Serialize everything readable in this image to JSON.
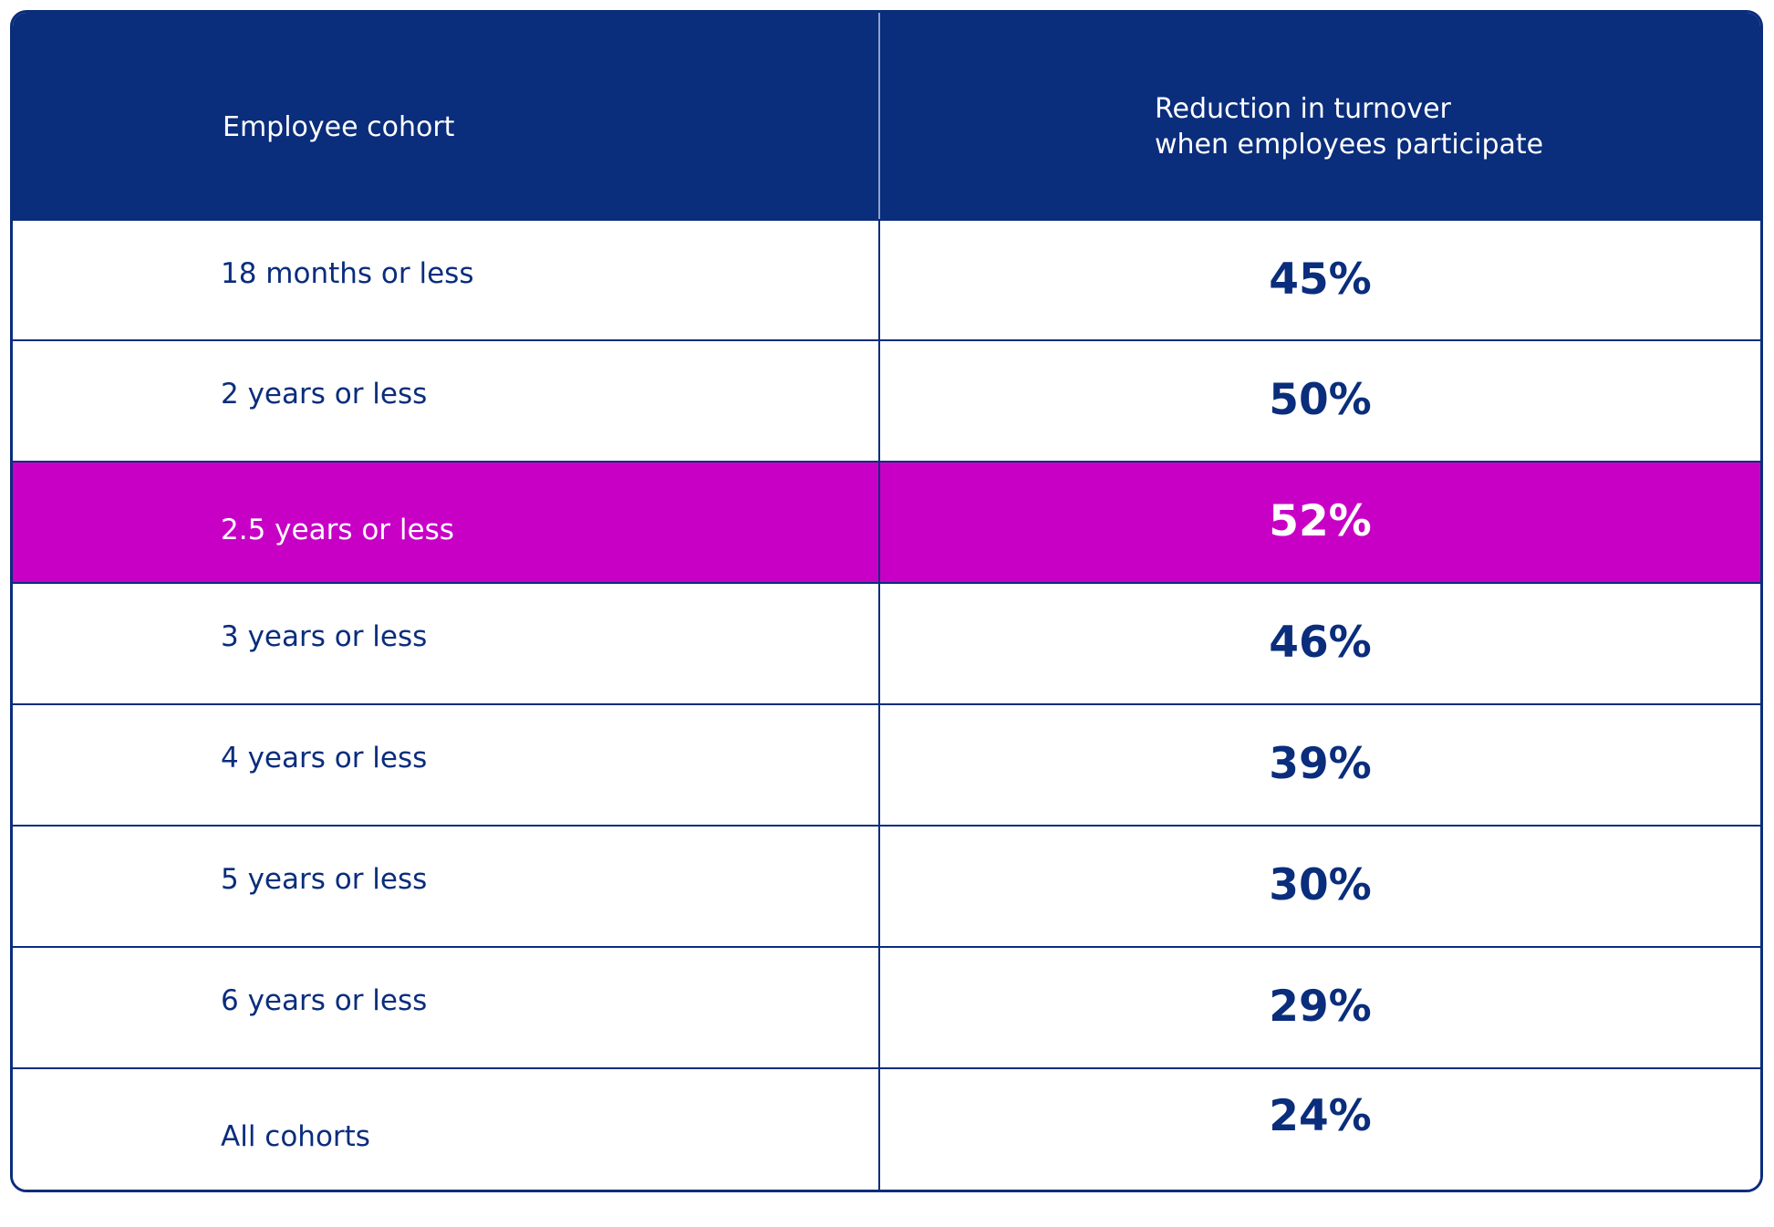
{
  "chart_data": {
    "type": "table",
    "columns": [
      "Employee cohort",
      "Reduction in turnover when employees participate"
    ],
    "header": {
      "cohort": "Employee cohort",
      "reduction_line1": "Reduction in turnover",
      "reduction_line2": "when employees participate"
    },
    "rows": [
      {
        "cohort": "18 months or less",
        "value": "45%",
        "highlight": false
      },
      {
        "cohort": "2 years or less",
        "value": "50%",
        "highlight": false
      },
      {
        "cohort": "2.5 years or less",
        "value": "52%",
        "highlight": true
      },
      {
        "cohort": "3 years or less",
        "value": "46%",
        "highlight": false
      },
      {
        "cohort": "4 years or less",
        "value": "39%",
        "highlight": false
      },
      {
        "cohort": "5 years or less",
        "value": "30%",
        "highlight": false
      },
      {
        "cohort": "6 years or less",
        "value": "29%",
        "highlight": false
      },
      {
        "cohort": "All cohorts",
        "value": "24%",
        "highlight": false
      }
    ],
    "colors": {
      "header_bg": "#0a2d7c",
      "text": "#0a2d7c",
      "highlight_bg": "#c800c6",
      "highlight_text": "#ffffff"
    }
  }
}
